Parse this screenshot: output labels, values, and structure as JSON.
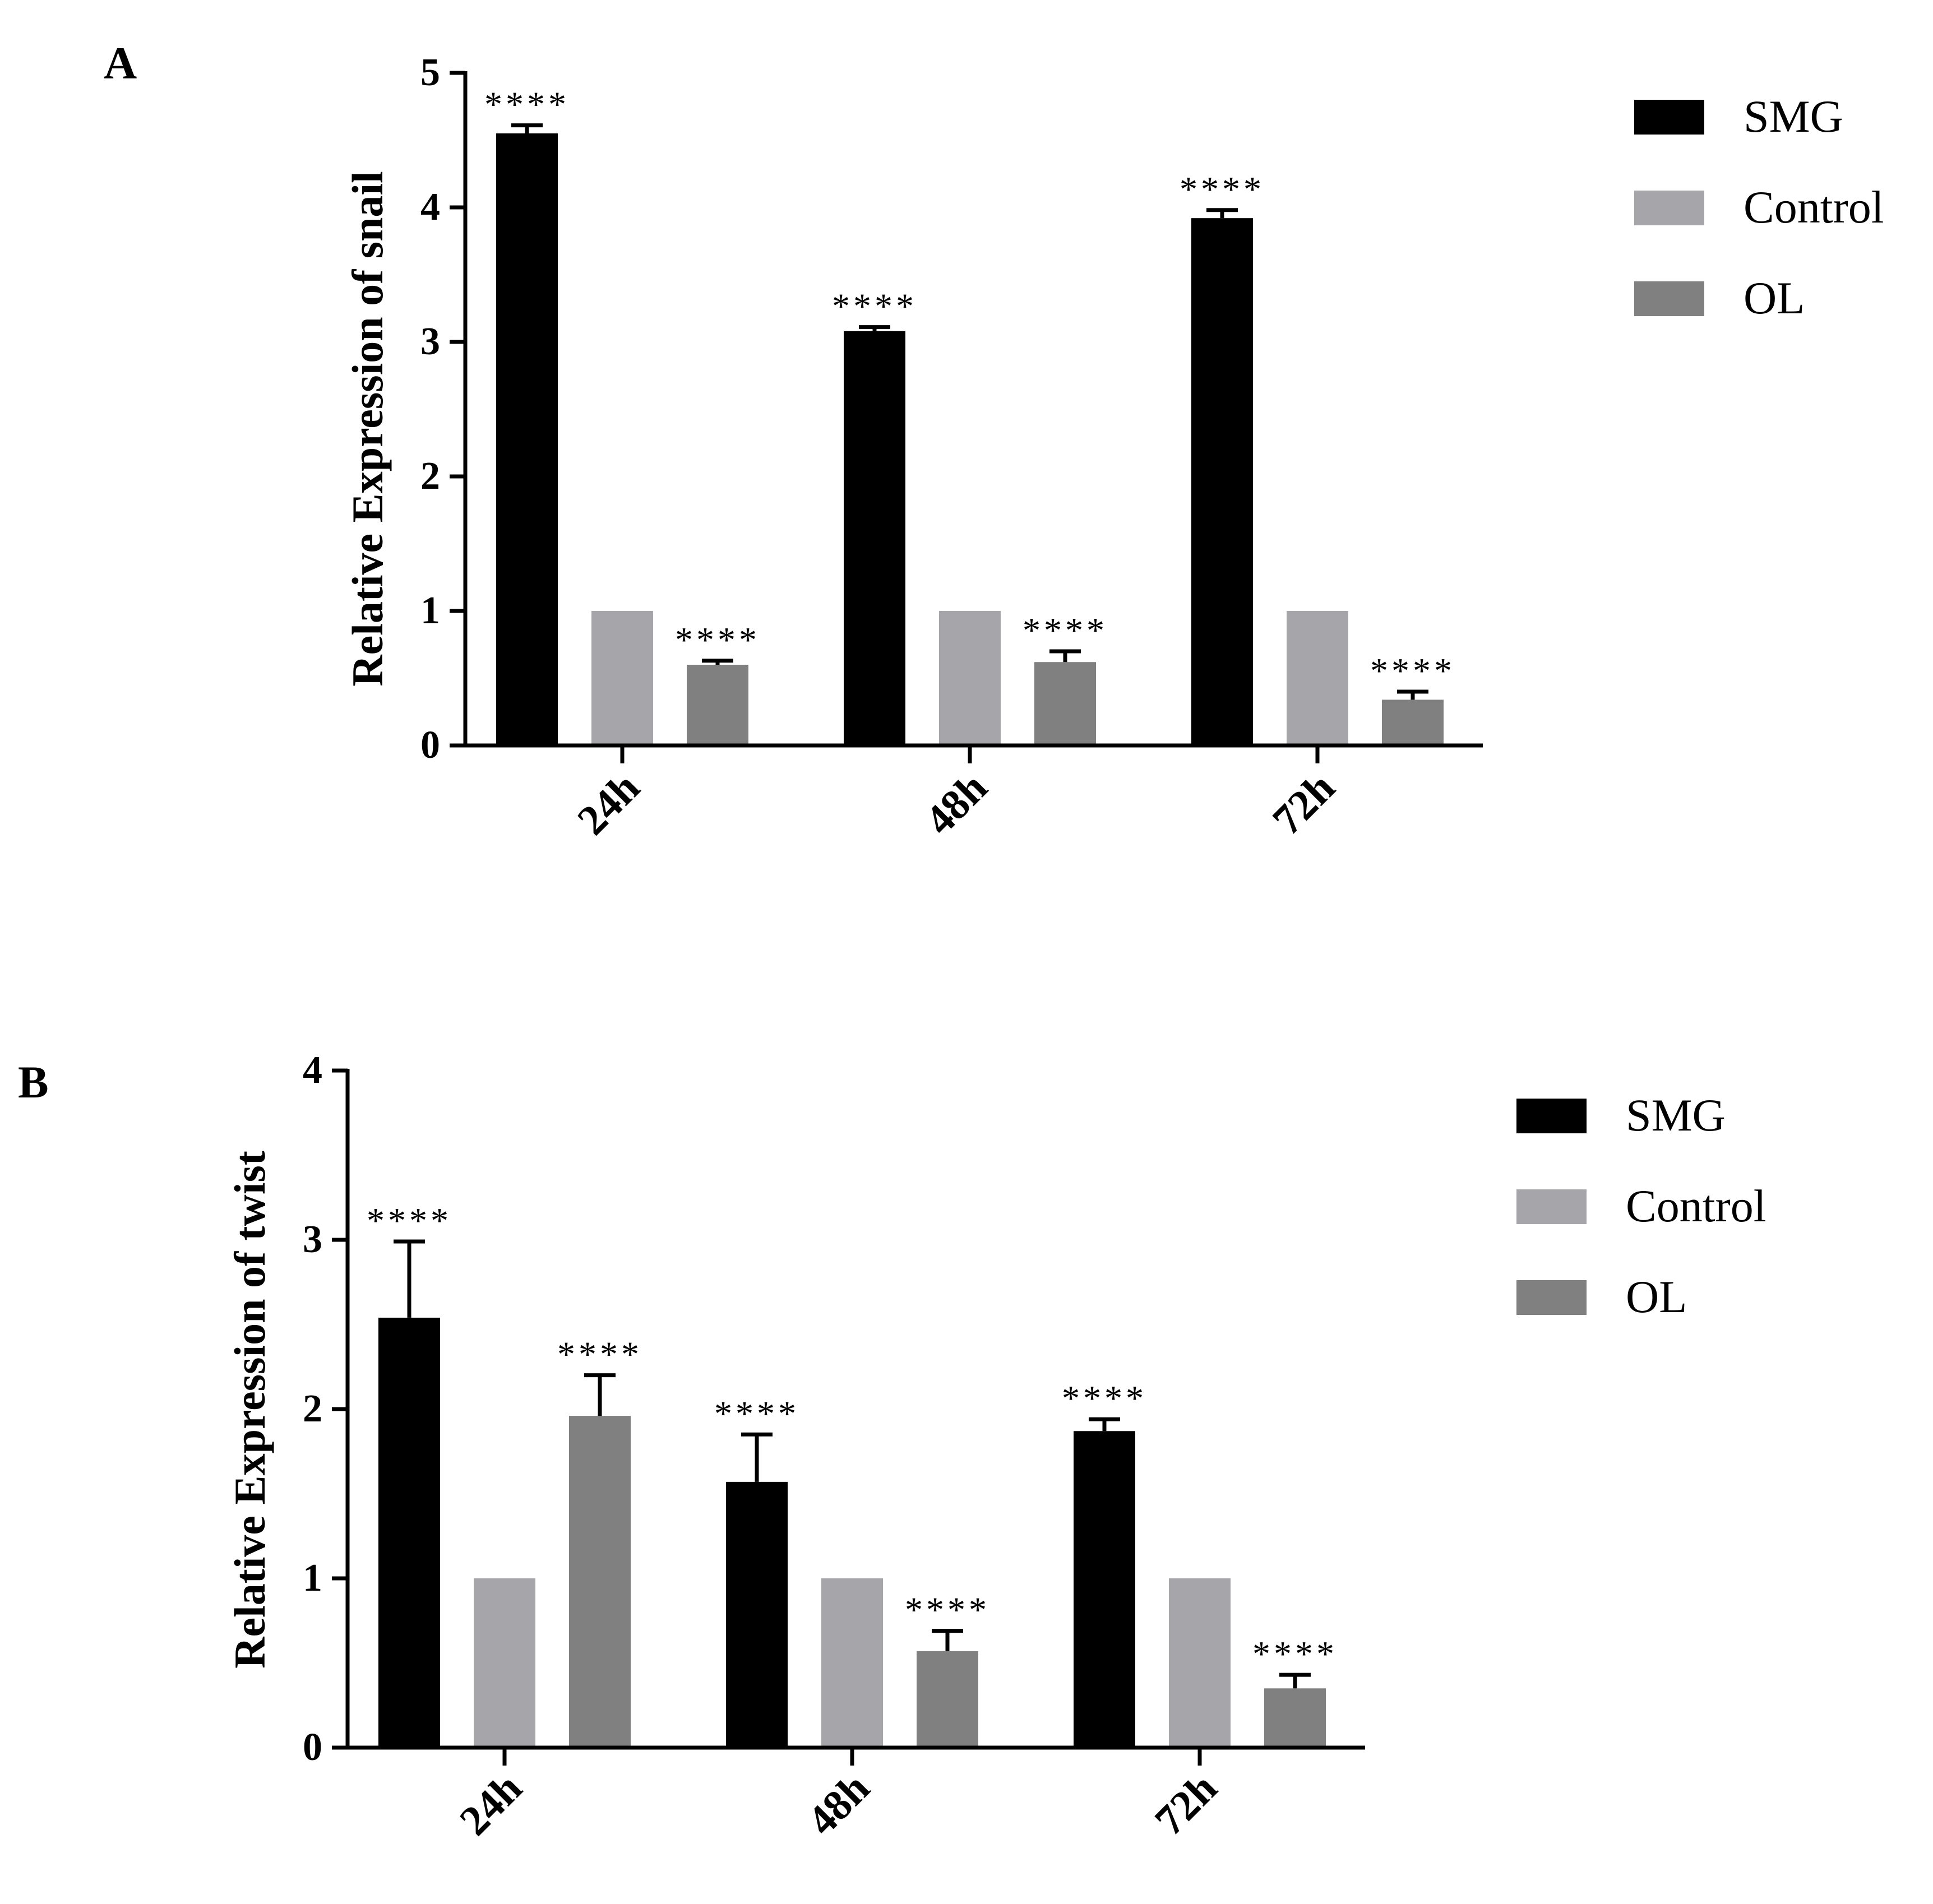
{
  "chart_data": [
    {
      "panel": "A",
      "type": "bar",
      "title": "",
      "xlabel": "",
      "ylabel": "Relative Expression of snail",
      "ylim": [
        0,
        5
      ],
      "yticks": [
        "0",
        "1",
        "2",
        "3",
        "4",
        "5"
      ],
      "categories": [
        "24h",
        "48h",
        "72h"
      ],
      "series": [
        {
          "name": "SMG",
          "color": "#000000",
          "values": [
            4.55,
            3.08,
            3.92
          ],
          "errors": [
            0.06,
            0.03,
            0.06
          ],
          "labels": [
            "****",
            "****",
            "****"
          ]
        },
        {
          "name": "Control",
          "color": "#a6a6aa",
          "values": [
            1.0,
            1.0,
            1.0
          ],
          "errors": [
            0,
            0,
            0
          ],
          "labels": [
            "",
            "",
            ""
          ]
        },
        {
          "name": "OL",
          "color": "#808080",
          "values": [
            0.6,
            0.62,
            0.34
          ],
          "errors": [
            0.03,
            0.08,
            0.06
          ],
          "labels": [
            "****",
            "****",
            "****"
          ]
        }
      ],
      "legend": "top-right"
    },
    {
      "panel": "B",
      "type": "bar",
      "title": "",
      "xlabel": "",
      "ylabel": "Relative Expression of twist",
      "ylim": [
        0,
        4
      ],
      "yticks": [
        "0",
        "1",
        "2",
        "3",
        "4"
      ],
      "categories": [
        "24h",
        "48h",
        "72h"
      ],
      "series": [
        {
          "name": "SMG",
          "color": "#000000",
          "values": [
            2.54,
            1.57,
            1.87
          ],
          "errors": [
            0.45,
            0.28,
            0.07
          ],
          "labels": [
            "****",
            "****",
            "****"
          ]
        },
        {
          "name": "Control",
          "color": "#a6a6aa",
          "values": [
            1.0,
            1.0,
            1.0
          ],
          "errors": [
            0,
            0,
            0
          ],
          "labels": [
            "",
            "",
            ""
          ]
        },
        {
          "name": "OL",
          "color": "#808080",
          "values": [
            1.96,
            0.57,
            0.35
          ],
          "errors": [
            0.24,
            0.12,
            0.08
          ],
          "labels": [
            "****",
            "****",
            "****"
          ]
        }
      ],
      "legend": "top-right"
    }
  ]
}
